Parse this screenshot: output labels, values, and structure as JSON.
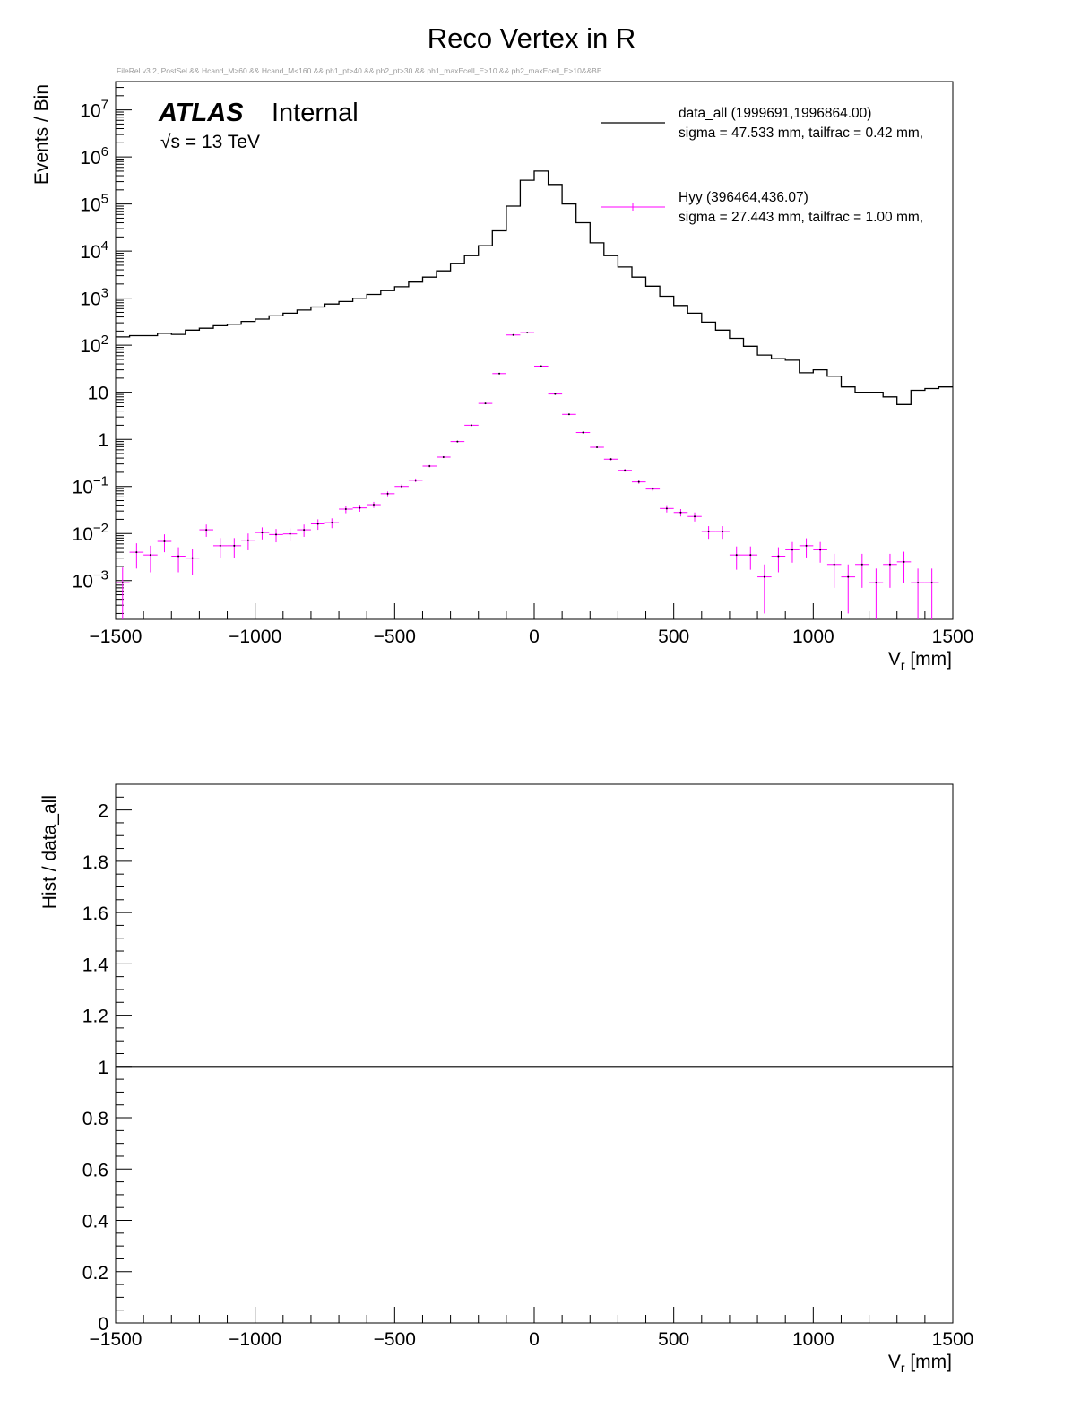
{
  "title": "Reco Vertex in R",
  "selection": "FileRel v3.2, PostSel && Hcand_M>60 && Hcand_M<160 && ph1_pt>40 && ph2_pt>30 && ph1_maxEcell_E>10 && ph2_maxEcell_E>10&&BE",
  "atlas": {
    "label": "ATLAS",
    "status": "Internal",
    "energy": "√s = 13 TeV"
  },
  "colors": {
    "data": "#000000",
    "signal": "#ff00ff"
  },
  "legend": [
    {
      "name": "data_all  (1999691,1996864.00)",
      "detail": "sigma = 47.533 mm, tailfrac = 0.42 mm,",
      "style": "line"
    },
    {
      "name": "Hyy  (396464,436.07)",
      "detail": "sigma = 27.443 mm, tailfrac = 1.00 mm,",
      "style": "errorbar"
    }
  ],
  "chart_data": [
    {
      "type": "line",
      "title": "Reco Vertex in R",
      "xlabel": "Vr [mm]",
      "ylabel": "Events / Bin",
      "xlim": [
        -1500,
        1500
      ],
      "ylim": [
        0.00015,
        40000000
      ],
      "yscale": "log",
      "bin_width": 50,
      "bin_centers": [
        -1475,
        -1425,
        -1375,
        -1325,
        -1275,
        -1225,
        -1175,
        -1125,
        -1075,
        -1025,
        -975,
        -925,
        -875,
        -825,
        -775,
        -725,
        -675,
        -625,
        -575,
        -525,
        -475,
        -425,
        -375,
        -325,
        -275,
        -225,
        -175,
        -125,
        -75,
        -25,
        25,
        75,
        125,
        175,
        225,
        275,
        325,
        375,
        425,
        475,
        525,
        575,
        625,
        675,
        725,
        775,
        825,
        875,
        925,
        975,
        1025,
        1075,
        1125,
        1175,
        1225,
        1275,
        1325,
        1375,
        1425,
        1475
      ],
      "y_ticks": [
        "10^-3",
        "10^-2",
        "10^-1",
        "1",
        "10",
        "10^2",
        "10^3",
        "10^4",
        "10^5",
        "10^6",
        "10^7"
      ],
      "x_ticks": [
        "−1500",
        "−1000",
        "−500",
        "0",
        "500",
        "1000",
        "1500"
      ],
      "series": [
        {
          "name": "data_all",
          "style": "step",
          "values": [
            150,
            160,
            160,
            180,
            170,
            210,
            230,
            260,
            280,
            320,
            360,
            420,
            480,
            560,
            650,
            750,
            850,
            1000,
            1200,
            1450,
            1750,
            2200,
            2800,
            3800,
            5500,
            8000,
            13000,
            27000,
            90000,
            320000,
            500000,
            260000,
            100000,
            40000,
            15000,
            8000,
            4600,
            2800,
            1800,
            1100,
            700,
            480,
            310,
            210,
            140,
            95,
            62,
            52,
            48,
            26,
            30,
            22,
            13,
            10,
            10,
            8,
            5.5,
            11,
            12,
            13
          ]
        },
        {
          "name": "Hyy",
          "style": "errorbar",
          "values": [
            0.0009,
            0.004,
            0.0035,
            0.0068,
            0.0033,
            0.003,
            0.012,
            0.0055,
            0.0055,
            0.0072,
            0.0105,
            0.0095,
            0.0098,
            0.012,
            0.016,
            0.017,
            0.033,
            0.035,
            0.041,
            0.07,
            0.1,
            0.135,
            0.27,
            0.42,
            0.9,
            2.0,
            5.8,
            25,
            165,
            185,
            36,
            9.2,
            3.4,
            1.4,
            0.68,
            0.38,
            0.22,
            0.125,
            0.088,
            0.034,
            0.028,
            0.023,
            0.011,
            0.011,
            0.0035,
            0.0035,
            0.0012,
            0.0033,
            0.0045,
            0.0055,
            0.0045,
            0.0022,
            0.0012,
            0.0022,
            0.0009,
            0.0022,
            0.0025,
            0.0009,
            0.0009,
            null
          ],
          "errors": [
            0.001,
            0.0022,
            0.002,
            0.0028,
            0.0018,
            0.0017,
            0.0035,
            0.0025,
            0.0025,
            0.0028,
            0.003,
            0.003,
            0.003,
            0.0035,
            0.004,
            0.004,
            0.006,
            0.006,
            0.006,
            0.008,
            0.01,
            0.012,
            0.016,
            0.02,
            0.03,
            0.05,
            0.09,
            0.2,
            0.7,
            0.8,
            0.3,
            0.12,
            0.07,
            0.045,
            0.03,
            0.02,
            0.015,
            0.011,
            0.009,
            0.006,
            0.005,
            0.005,
            0.0033,
            0.0033,
            0.0018,
            0.0018,
            0.001,
            0.0018,
            0.0021,
            0.0024,
            0.0021,
            0.0015,
            0.001,
            0.0015,
            0.0009,
            0.0015,
            0.0016,
            0.0009,
            0.0009,
            null
          ]
        }
      ]
    },
    {
      "type": "line",
      "xlabel": "Vr [mm]",
      "ylabel": "Hist / data_all",
      "xlim": [
        -1500,
        1500
      ],
      "ylim": [
        0,
        2.1
      ],
      "y_ticks": [
        "0",
        "0.2",
        "0.4",
        "0.6",
        "0.8",
        "1",
        "1.2",
        "1.4",
        "1.6",
        "1.8",
        "2"
      ],
      "x_ticks": [
        "−1500",
        "−1000",
        "−500",
        "0",
        "500",
        "1000",
        "1500"
      ],
      "series": [
        {
          "name": "ratio",
          "x": [
            -1500,
            1500
          ],
          "values": [
            1,
            1
          ]
        }
      ]
    }
  ]
}
